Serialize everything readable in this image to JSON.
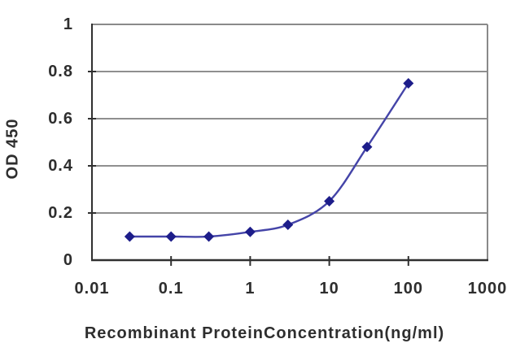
{
  "chart_data": {
    "type": "line",
    "title": "",
    "xlabel": "Recombinant ProteinConcentration(ng/ml)",
    "ylabel": "OD 450",
    "x_scale": "log",
    "y_scale": "linear",
    "xlim": [
      0.01,
      1000
    ],
    "ylim": [
      0,
      1
    ],
    "x": [
      0.03,
      0.1,
      0.3,
      1,
      3,
      10,
      30,
      100
    ],
    "y": [
      0.1,
      0.1,
      0.1,
      0.12,
      0.15,
      0.25,
      0.48,
      0.75
    ],
    "x_ticks": [
      0.01,
      0.1,
      1,
      10,
      100,
      1000
    ],
    "x_tick_labels": [
      "0.01",
      "0.1",
      "1",
      "10",
      "100",
      "1000"
    ],
    "y_ticks": [
      0,
      0.2,
      0.4,
      0.6,
      0.8,
      1
    ],
    "y_tick_labels": [
      "0",
      "0.2",
      "0.4",
      "0.6",
      "0.8",
      "1"
    ],
    "grid": "horizontal",
    "legend": "none",
    "line_style": "smooth",
    "marker": "diamond",
    "colors": {
      "line": "#4444a8",
      "marker": "#1d1d8a",
      "gridline": "#8f8f8f",
      "plot_border": "#8a8a8a",
      "axis": "#303030",
      "text": "#2e2e2e",
      "background": "#ffffff"
    }
  }
}
